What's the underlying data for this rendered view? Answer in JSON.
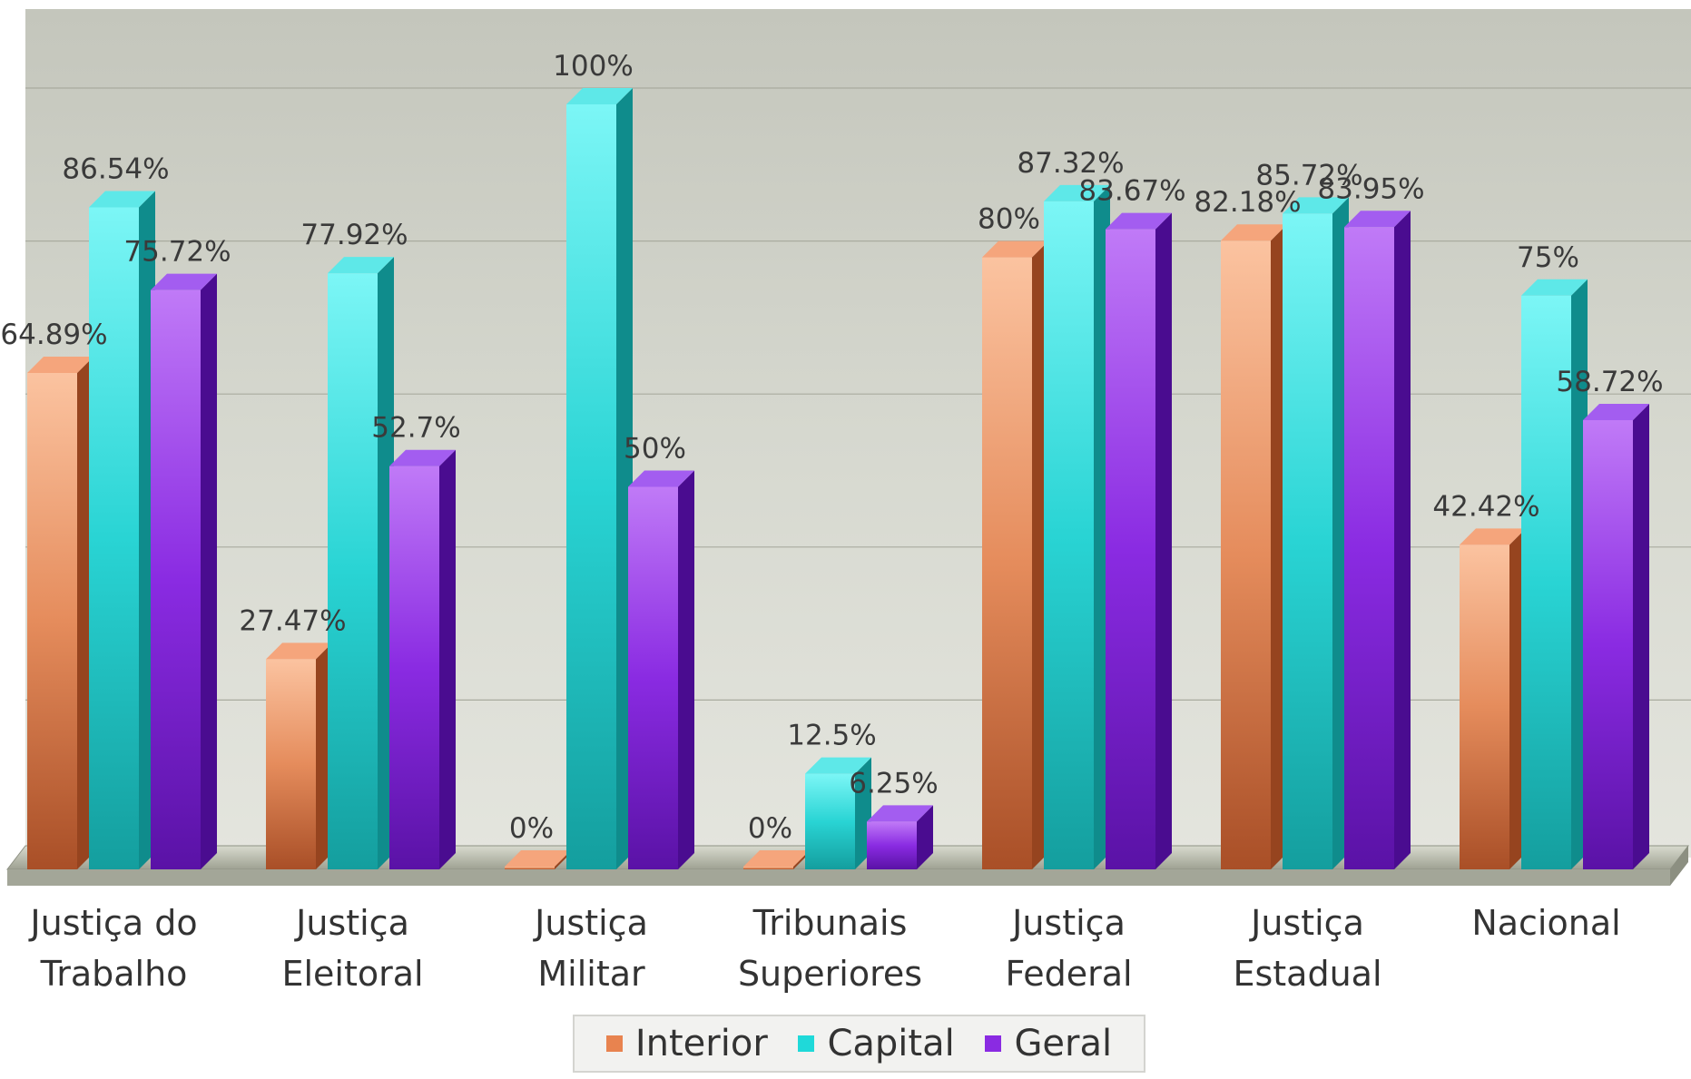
{
  "chart_data": {
    "type": "bar",
    "categories": [
      [
        "Justiça do",
        "Trabalho"
      ],
      [
        "Justiça",
        "Eleitoral"
      ],
      [
        "Justiça",
        "Militar"
      ],
      [
        "Tribunais",
        "Superiores"
      ],
      [
        "Justiça",
        "Federal"
      ],
      [
        "Justiça",
        "Estadual"
      ],
      [
        "Nacional"
      ]
    ],
    "series": [
      {
        "name": "Interior",
        "color": "#e8834f",
        "values": [
          64.89,
          27.47,
          0,
          0,
          80,
          82.18,
          42.42
        ],
        "labels": [
          "64.89%",
          "27.47%",
          "0%",
          "0%",
          "80%",
          "82.18%",
          "42.42%"
        ]
      },
      {
        "name": "Capital",
        "color": "#1fd9d9",
        "values": [
          86.54,
          77.92,
          100,
          12.5,
          87.32,
          85.72,
          75
        ],
        "labels": [
          "86.54%",
          "77.92%",
          "100%",
          "12.5%",
          "87.32%",
          "85.72%",
          "75%"
        ]
      },
      {
        "name": "Geral",
        "color": "#8a2be2",
        "values": [
          75.72,
          52.7,
          50,
          6.25,
          83.67,
          83.95,
          58.72
        ],
        "labels": [
          "75.72%",
          "52.7%",
          "50%",
          "6.25%",
          "83.67%",
          "83.95%",
          "58.72%"
        ]
      }
    ],
    "ylim": [
      0,
      100
    ],
    "grid": true,
    "legend_position": "bottom"
  }
}
